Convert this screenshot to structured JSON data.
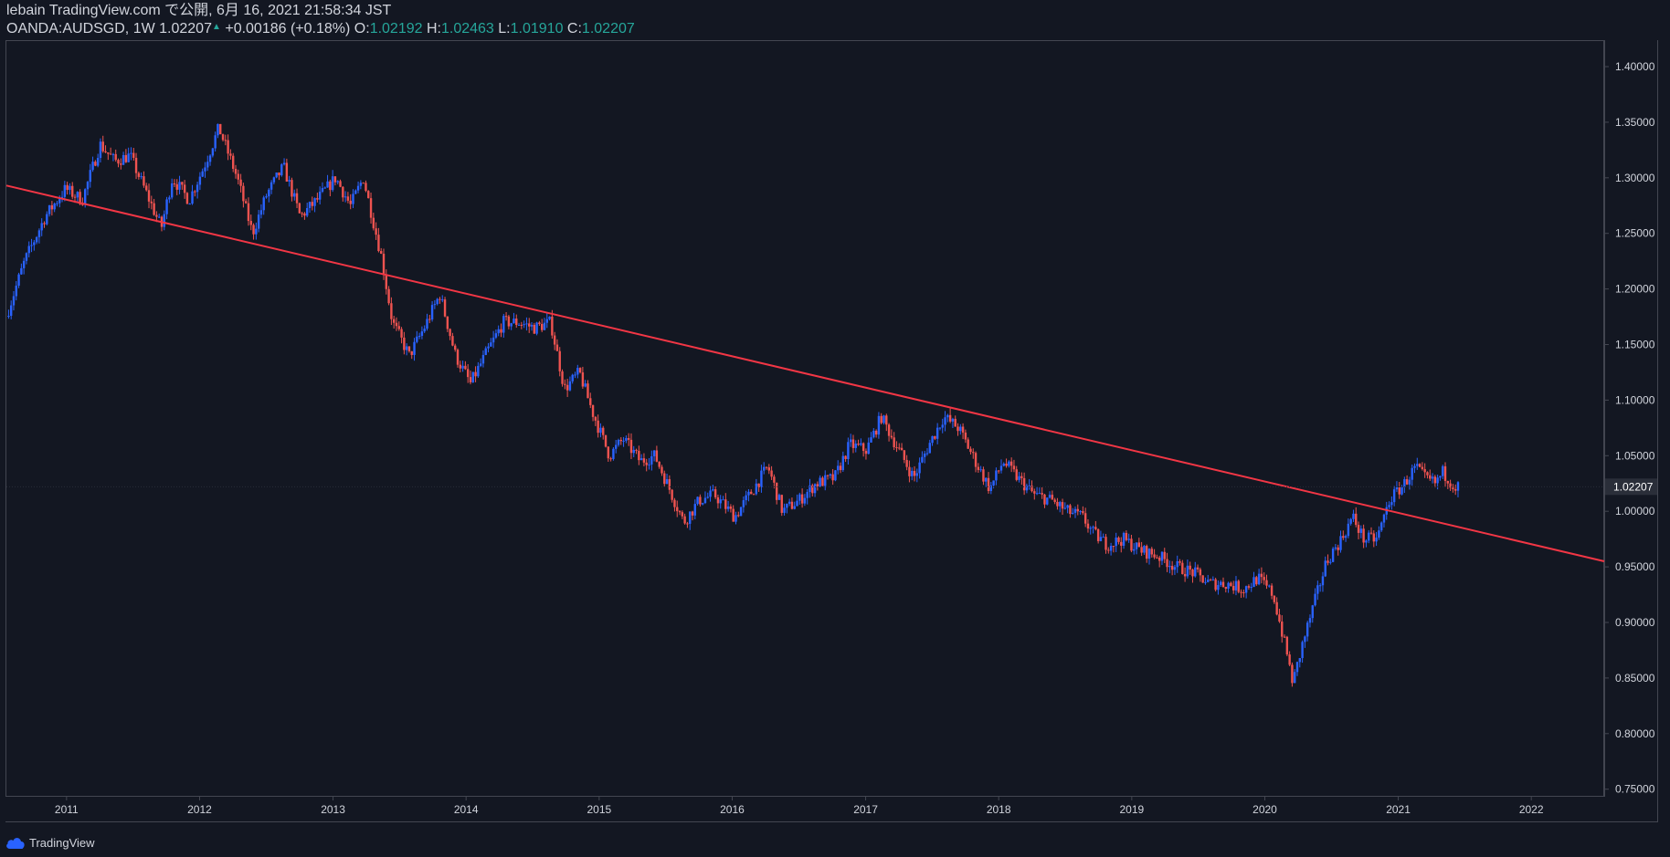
{
  "header": {
    "publish_line": "lebain TradingView.com で公開, 6月 16, 2021 21:58:34 JST",
    "symbol": "OANDA:AUDSGD, 1W",
    "last": "1.02207",
    "up_arrow": "▲",
    "change": "+0.00186 (+0.18%)",
    "o_label": "O:",
    "o_value": "1.02192",
    "h_label": "H:",
    "h_value": "1.02463",
    "l_label": "L:",
    "l_value": "1.01910",
    "c_label": "C:",
    "c_value": "1.02207"
  },
  "footer": {
    "brand": "TradingView"
  },
  "colors": {
    "background": "#131722",
    "up_candle": "#2962ff",
    "down_candle": "#ef5350",
    "trendline": "#f23645",
    "text": "#d1d4dc",
    "positive": "#26a69a"
  },
  "chart_data": {
    "type": "candlestick",
    "timeframe": "1W",
    "symbol": "OANDA:AUDSGD",
    "x_ticks": [
      "2011",
      "2012",
      "2013",
      "2014",
      "2015",
      "2016",
      "2017",
      "2018",
      "2019",
      "2020",
      "2021",
      "2022"
    ],
    "y_ticks": [
      "1.40000",
      "1.35000",
      "1.30000",
      "1.25000",
      "1.20000",
      "1.15000",
      "1.10000",
      "1.05000",
      "1.00000",
      "0.95000",
      "0.90000",
      "0.85000",
      "0.80000",
      "0.75000"
    ],
    "ylim": [
      0.744,
      1.423
    ],
    "xlim": [
      "2010-07-20",
      "2022-07-20"
    ],
    "last_price_label": "1.02207",
    "trendline": {
      "start": [
        "2010-07-20",
        1.293
      ],
      "end": [
        "2022-07-20",
        0.955
      ]
    },
    "price_path": [
      [
        "2010-07-26",
        1.175
      ],
      [
        "2010-09-15",
        1.225
      ],
      [
        "2010-11-10",
        1.265
      ],
      [
        "2011-01-05",
        1.29
      ],
      [
        "2011-02-20",
        1.28
      ],
      [
        "2011-04-10",
        1.33
      ],
      [
        "2011-05-20",
        1.315
      ],
      [
        "2011-07-01",
        1.32
      ],
      [
        "2011-08-10",
        1.29
      ],
      [
        "2011-09-25",
        1.255
      ],
      [
        "2011-10-25",
        1.3
      ],
      [
        "2011-12-10",
        1.28
      ],
      [
        "2012-01-20",
        1.31
      ],
      [
        "2012-03-01",
        1.345
      ],
      [
        "2012-04-20",
        1.3
      ],
      [
        "2012-06-01",
        1.25
      ],
      [
        "2012-07-10",
        1.285
      ],
      [
        "2012-08-25",
        1.31
      ],
      [
        "2012-10-10",
        1.265
      ],
      [
        "2012-11-25",
        1.28
      ],
      [
        "2013-01-15",
        1.3
      ],
      [
        "2013-02-25",
        1.275
      ],
      [
        "2013-04-01",
        1.3
      ],
      [
        "2013-05-20",
        1.23
      ],
      [
        "2013-06-20",
        1.17
      ],
      [
        "2013-08-05",
        1.14
      ],
      [
        "2013-09-15",
        1.165
      ],
      [
        "2013-10-28",
        1.195
      ],
      [
        "2013-12-10",
        1.14
      ],
      [
        "2014-01-20",
        1.115
      ],
      [
        "2014-03-01",
        1.14
      ],
      [
        "2014-04-20",
        1.17
      ],
      [
        "2014-06-01",
        1.17
      ],
      [
        "2014-07-15",
        1.165
      ],
      [
        "2014-08-28",
        1.17
      ],
      [
        "2014-10-05",
        1.11
      ],
      [
        "2014-11-15",
        1.125
      ],
      [
        "2014-12-20",
        1.09
      ],
      [
        "2015-02-05",
        1.05
      ],
      [
        "2015-03-15",
        1.065
      ],
      [
        "2015-05-01",
        1.045
      ],
      [
        "2015-06-10",
        1.05
      ],
      [
        "2015-07-20",
        1.02
      ],
      [
        "2015-08-28",
        0.99
      ],
      [
        "2015-10-10",
        1.01
      ],
      [
        "2015-11-20",
        1.015
      ],
      [
        "2016-01-15",
        0.995
      ],
      [
        "2016-02-25",
        1.015
      ],
      [
        "2016-04-15",
        1.04
      ],
      [
        "2016-05-25",
        1.0
      ],
      [
        "2016-07-10",
        1.01
      ],
      [
        "2016-08-25",
        1.025
      ],
      [
        "2016-10-15",
        1.03
      ],
      [
        "2016-11-25",
        1.06
      ],
      [
        "2017-01-10",
        1.055
      ],
      [
        "2017-02-20",
        1.085
      ],
      [
        "2017-04-01",
        1.06
      ],
      [
        "2017-05-20",
        1.03
      ],
      [
        "2017-07-01",
        1.06
      ],
      [
        "2017-08-10",
        1.085
      ],
      [
        "2017-09-20",
        1.075
      ],
      [
        "2017-11-05",
        1.045
      ],
      [
        "2017-12-15",
        1.02
      ],
      [
        "2018-01-20",
        1.045
      ],
      [
        "2018-03-01",
        1.03
      ],
      [
        "2018-04-15",
        1.015
      ],
      [
        "2018-06-01",
        1.01
      ],
      [
        "2018-07-15",
        1.0
      ],
      [
        "2018-08-25",
        0.995
      ],
      [
        "2018-09-25",
        0.98
      ],
      [
        "2018-11-01",
        0.97
      ],
      [
        "2018-12-15",
        0.975
      ],
      [
        "2019-02-01",
        0.965
      ],
      [
        "2019-03-20",
        0.96
      ],
      [
        "2019-05-10",
        0.95
      ],
      [
        "2019-06-25",
        0.945
      ],
      [
        "2019-08-10",
        0.935
      ],
      [
        "2019-09-25",
        0.935
      ],
      [
        "2019-11-10",
        0.93
      ],
      [
        "2019-12-20",
        0.94
      ],
      [
        "2020-01-31",
        0.925
      ],
      [
        "2020-03-10",
        0.87
      ],
      [
        "2020-03-25",
        0.845
      ],
      [
        "2020-04-20",
        0.88
      ],
      [
        "2020-05-25",
        0.92
      ],
      [
        "2020-06-25",
        0.955
      ],
      [
        "2020-08-05",
        0.975
      ],
      [
        "2020-09-05",
        0.995
      ],
      [
        "2020-10-05",
        0.975
      ],
      [
        "2020-11-10",
        0.975
      ],
      [
        "2020-12-15",
        1.01
      ],
      [
        "2021-01-25",
        1.025
      ],
      [
        "2021-02-25",
        1.04
      ],
      [
        "2021-03-20",
        1.03
      ],
      [
        "2021-04-20",
        1.025
      ],
      [
        "2021-05-10",
        1.035
      ],
      [
        "2021-06-14",
        1.022
      ]
    ]
  }
}
